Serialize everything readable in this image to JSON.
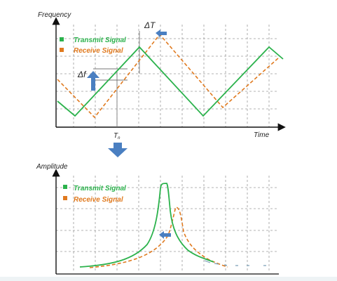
{
  "top_chart": {
    "ylabel": "Frequency",
    "xlabel": "Time",
    "legend": [
      {
        "label": "Transmit Signal",
        "color": "#2bb24c"
      },
      {
        "label": "Receive Signal",
        "color": "#e07a1f"
      }
    ],
    "delta_t_label": "ΔT",
    "delta_f_label": "Δf",
    "tn_label": "T",
    "tn_sub": "n"
  },
  "bottom_chart": {
    "ylabel": "Amplitude",
    "legend": [
      {
        "label": "Transmit Signal",
        "color": "#2bb24c"
      },
      {
        "label": "Receive Signal",
        "color": "#e07a1f"
      }
    ]
  },
  "colors": {
    "transmit": "#2bb24c",
    "receive": "#e07a1f",
    "arrow": "#4a7fc1",
    "grid": "#9a9a9a"
  },
  "icons": [
    "arrow-left-icon",
    "arrow-up-icon",
    "arrow-down-icon"
  ]
}
